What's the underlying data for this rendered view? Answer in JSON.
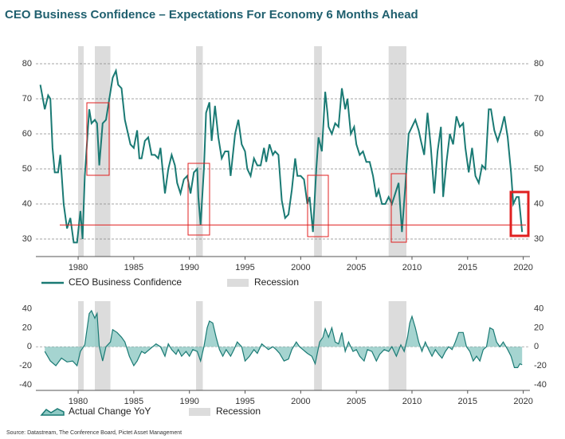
{
  "title": "CEO Business Confidence – Expectations For Economy 6 Months Ahead",
  "source": "Source: Datastream, The Conference Board, Pictet Asset Management",
  "chart_data": [
    {
      "type": "line",
      "x": [
        1976.6,
        1977.0,
        1977.3,
        1977.5,
        1977.7,
        1977.9,
        1978.2,
        1978.4,
        1978.7,
        1979.0,
        1979.3,
        1979.6,
        1979.9,
        1980.2,
        1980.4,
        1980.6,
        1981.0,
        1981.2,
        1981.5,
        1981.7,
        1981.9,
        1982.2,
        1982.5,
        1982.8,
        1983.1,
        1983.4,
        1983.6,
        1983.9,
        1984.2,
        1984.7,
        1985.0,
        1985.3,
        1985.5,
        1985.7,
        1986.0,
        1986.3,
        1986.6,
        1986.9,
        1987.2,
        1987.4,
        1987.8,
        1988.1,
        1988.4,
        1988.7,
        1988.9,
        1989.2,
        1989.5,
        1989.8,
        1990.1,
        1990.4,
        1990.7,
        1990.8,
        1991.0,
        1991.3,
        1991.5,
        1991.8,
        1992.0,
        1992.3,
        1992.6,
        1992.9,
        1993.2,
        1993.5,
        1993.7,
        1994.1,
        1994.4,
        1994.7,
        1995.0,
        1995.2,
        1995.5,
        1995.8,
        1996.1,
        1996.4,
        1996.7,
        1996.9,
        1997.2,
        1997.5,
        1997.7,
        1998.0,
        1998.3,
        1998.6,
        1998.9,
        1999.2,
        1999.5,
        1999.7,
        2000.0,
        2000.3,
        2000.6,
        2000.8,
        2001.1,
        2001.4,
        2001.6,
        2001.9,
        2002.2,
        2002.4,
        2002.5,
        2002.8,
        2003.1,
        2003.4,
        2003.7,
        2004.0,
        2004.2,
        2004.5,
        2004.8,
        2005.0,
        2005.3,
        2005.6,
        2005.9,
        2006.2,
        2006.5,
        2006.8,
        2007.0,
        2007.3,
        2007.6,
        2007.9,
        2008.2,
        2008.5,
        2008.8,
        2009.1,
        2009.4,
        2009.7,
        2010.0,
        2010.3,
        2010.6,
        2010.8,
        2011.1,
        2011.4,
        2011.7,
        2012.0,
        2012.3,
        2012.6,
        2012.8,
        2013.1,
        2013.4,
        2013.7,
        2014.0,
        2014.3,
        2014.6,
        2014.8,
        2015.1,
        2015.4,
        2015.7,
        2016.0,
        2016.3,
        2016.6,
        2016.9,
        2017.1,
        2017.4,
        2017.7,
        2018.0,
        2018.3,
        2018.6,
        2018.9,
        2019.1,
        2019.4,
        2019.6,
        2019.9
      ],
      "series": [
        {
          "name": "CEO Business Confidence",
          "color": "#1a7a74",
          "values": [
            74,
            67,
            71,
            70,
            56,
            49,
            49,
            54,
            40,
            33,
            36,
            29,
            29,
            38,
            30,
            48,
            67,
            63,
            64,
            63,
            51,
            63,
            64,
            70,
            76,
            78,
            74,
            73,
            64,
            57,
            56,
            61,
            53,
            53,
            58,
            59,
            54,
            54,
            53,
            56,
            43,
            50,
            54,
            51,
            46,
            43,
            47,
            48,
            43,
            49,
            50,
            42,
            34,
            50,
            66,
            69,
            58,
            68,
            59,
            53,
            55,
            55,
            48,
            60,
            64,
            57,
            55,
            50,
            48,
            53,
            51,
            51,
            56,
            52,
            57,
            54,
            55,
            54,
            41,
            36,
            37,
            44,
            53,
            48,
            48,
            47,
            40,
            42,
            32,
            50,
            59,
            55,
            72,
            66,
            62,
            60,
            63,
            62,
            73,
            67,
            70,
            60,
            62,
            57,
            54,
            55,
            52,
            52,
            48,
            42,
            44,
            40,
            40,
            42,
            40,
            43,
            46,
            32,
            45,
            60,
            62,
            64,
            61,
            58,
            54,
            66,
            56,
            43,
            55,
            62,
            42,
            52,
            60,
            57,
            65,
            62,
            63,
            56,
            49,
            56,
            48,
            46,
            51,
            50,
            67,
            67,
            61,
            58,
            61,
            65,
            59,
            49,
            40,
            42,
            42,
            32
          ]
        }
      ],
      "recessions": [
        [
          1980.0,
          1980.5
        ],
        [
          1981.5,
          1982.9
        ],
        [
          1990.6,
          1991.2
        ],
        [
          2001.2,
          2001.9
        ],
        [
          2007.9,
          2009.5
        ]
      ],
      "recession_label": "Recession",
      "recession_color": "#dcdcdc",
      "reference_line": {
        "value": 34,
        "color": "#e02020"
      },
      "xlim": [
        1976.2,
        2020.6
      ],
      "xticks": [
        1980,
        1985,
        1990,
        1995,
        2000,
        2005,
        2010,
        2015,
        2020
      ],
      "ylim": [
        25,
        85
      ],
      "yticks": [
        30,
        40,
        50,
        60,
        70,
        80
      ],
      "grid": true
    },
    {
      "type": "area",
      "x": [
        1977.0,
        1977.5,
        1978.0,
        1978.5,
        1979.0,
        1979.5,
        1979.9,
        1980.2,
        1980.6,
        1981.0,
        1981.2,
        1981.5,
        1981.7,
        1981.9,
        1982.2,
        1982.5,
        1982.9,
        1983.1,
        1983.5,
        1983.9,
        1984.2,
        1984.6,
        1985.0,
        1985.3,
        1985.7,
        1986.0,
        1986.5,
        1987.0,
        1987.4,
        1987.8,
        1988.1,
        1988.4,
        1988.8,
        1989.0,
        1989.3,
        1989.7,
        1990.0,
        1990.3,
        1990.7,
        1991.0,
        1991.3,
        1991.6,
        1991.8,
        1992.1,
        1992.4,
        1992.7,
        1993.0,
        1993.3,
        1993.7,
        1994.0,
        1994.3,
        1994.7,
        1995.0,
        1995.4,
        1995.8,
        1996.1,
        1996.5,
        1996.8,
        1997.1,
        1997.5,
        1997.8,
        1998.1,
        1998.5,
        1998.9,
        1999.2,
        1999.6,
        1999.9,
        2000.2,
        2000.6,
        2001.0,
        2001.3,
        2001.7,
        2002.0,
        2002.2,
        2002.5,
        2002.8,
        2003.1,
        2003.4,
        2003.7,
        2004.0,
        2004.3,
        2004.7,
        2005.0,
        2005.3,
        2005.7,
        2006.0,
        2006.4,
        2006.8,
        2007.1,
        2007.5,
        2007.9,
        2008.2,
        2008.6,
        2009.0,
        2009.3,
        2009.6,
        2009.8,
        2010.0,
        2010.3,
        2010.6,
        2010.9,
        2011.2,
        2011.5,
        2011.8,
        2012.1,
        2012.4,
        2012.7,
        2013.0,
        2013.3,
        2013.6,
        2013.9,
        2014.2,
        2014.6,
        2014.9,
        2015.2,
        2015.5,
        2015.8,
        2016.1,
        2016.4,
        2016.7,
        2017.0,
        2017.3,
        2017.6,
        2017.9,
        2018.2,
        2018.6,
        2018.9,
        2019.2,
        2019.5,
        2019.7,
        2019.9
      ],
      "series": [
        {
          "name": "Actual Change YoY",
          "color": "#1a7a74",
          "fill": "#8fc9c4",
          "values": [
            -5,
            -15,
            -20,
            -12,
            -16,
            -15,
            -20,
            -5,
            2,
            35,
            38,
            30,
            35,
            0,
            -15,
            0,
            5,
            18,
            15,
            10,
            5,
            -10,
            -20,
            -15,
            -5,
            -7,
            -2,
            3,
            0,
            -10,
            3,
            -3,
            -8,
            -3,
            -10,
            -5,
            -10,
            -3,
            -5,
            -15,
            0,
            20,
            27,
            25,
            10,
            -3,
            -10,
            -3,
            -10,
            -3,
            5,
            0,
            -15,
            -10,
            -3,
            -7,
            3,
            0,
            -3,
            0,
            -3,
            -7,
            -15,
            -13,
            -3,
            5,
            0,
            -3,
            -7,
            -10,
            -18,
            5,
            10,
            19,
            10,
            20,
            5,
            3,
            15,
            -5,
            5,
            -5,
            -3,
            -10,
            -15,
            -3,
            -5,
            -15,
            -8,
            -3,
            -5,
            0,
            -10,
            2,
            -5,
            10,
            25,
            32,
            20,
            5,
            -5,
            5,
            -3,
            -10,
            -3,
            -8,
            -12,
            -5,
            0,
            -3,
            5,
            15,
            15,
            0,
            -5,
            -15,
            -10,
            -15,
            -3,
            0,
            20,
            18,
            5,
            0,
            5,
            -3,
            -10,
            -22,
            -22,
            -18,
            -19
          ]
        }
      ],
      "recessions": [
        [
          1980.0,
          1980.5
        ],
        [
          1981.5,
          1982.9
        ],
        [
          1990.6,
          1991.2
        ],
        [
          2001.2,
          2001.9
        ],
        [
          2007.9,
          2009.5
        ]
      ],
      "recession_label": "Recession",
      "recession_color": "#dcdcdc",
      "xlim": [
        1976.2,
        2020.6
      ],
      "xticks": [
        1980,
        1985,
        1990,
        1995,
        2000,
        2005,
        2010,
        2015,
        2020
      ],
      "ylim": [
        -46,
        48
      ],
      "yticks": [
        -40,
        -20,
        0,
        20,
        40
      ],
      "grid": false,
      "zero_line": true
    }
  ]
}
